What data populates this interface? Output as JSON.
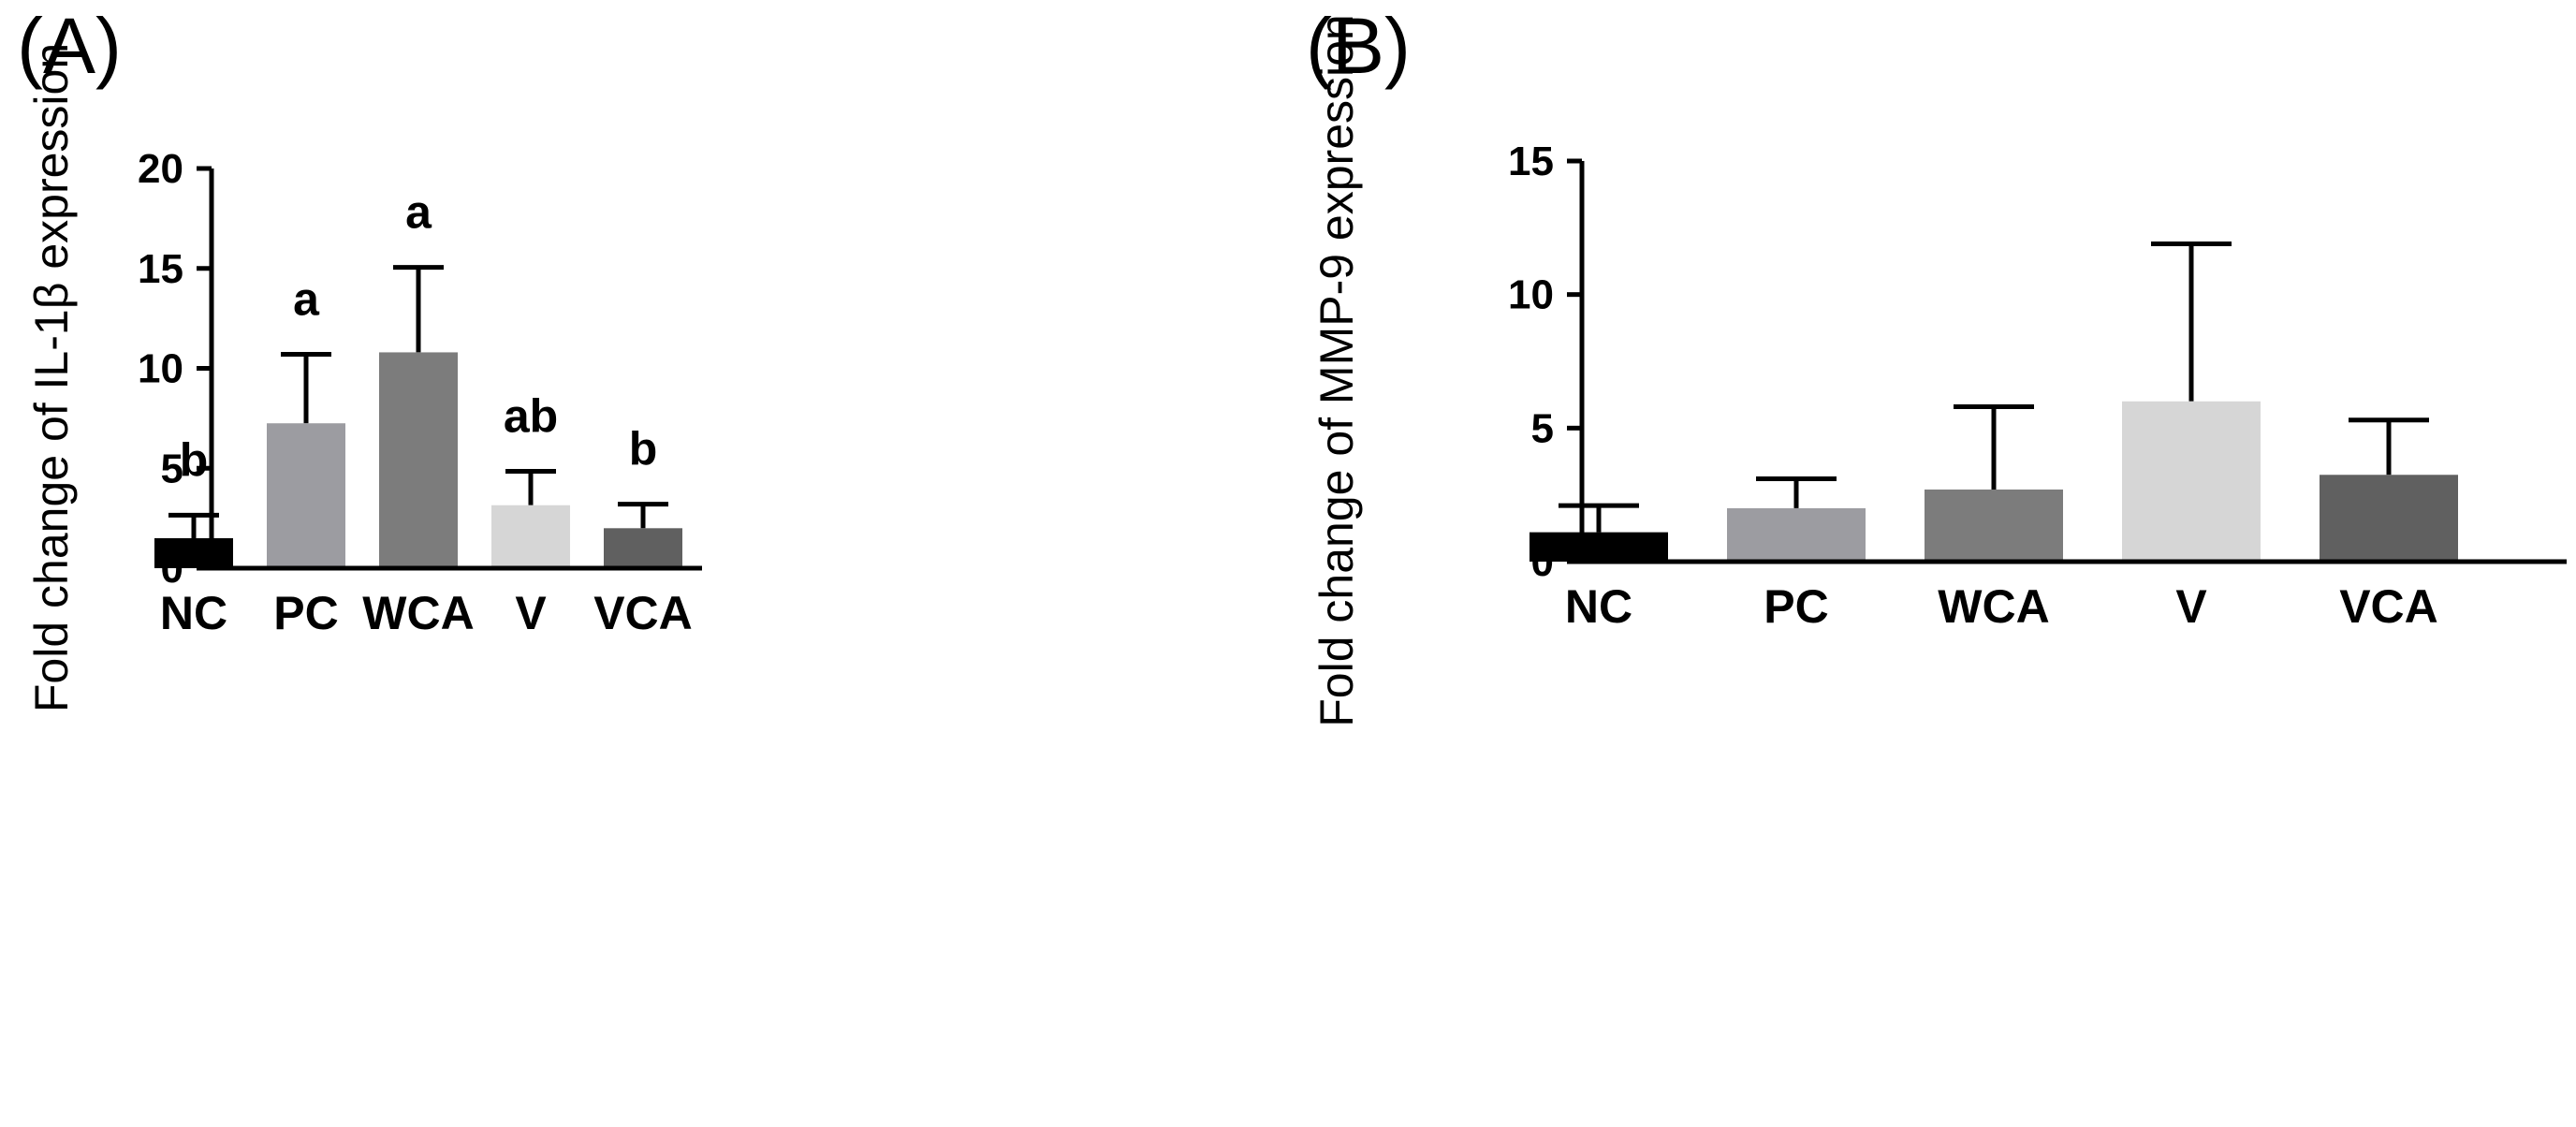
{
  "chart_data": [
    {
      "type": "bar",
      "panel_label": "(A)",
      "title": "",
      "xlabel": "",
      "ylabel": "Fold change of IL-1β expression",
      "categories": [
        "NC",
        "PC",
        "WCA",
        "V",
        "VCA"
      ],
      "values": [
        1.5,
        7.25,
        10.8,
        3.15,
        2.0
      ],
      "error_upper": [
        2.65,
        10.7,
        15.05,
        4.85,
        3.2
      ],
      "significance": [
        "b",
        "a",
        "a",
        "ab",
        "b"
      ],
      "bar_colors": [
        "#000000",
        "#9c9ca1",
        "#7c7c7c",
        "#d6d6d6",
        "#606060"
      ],
      "ylim": [
        0,
        20
      ],
      "yticks": [
        0,
        5,
        10,
        15,
        20
      ],
      "ytick_labels": [
        "0",
        "5",
        "10",
        "15",
        "20"
      ],
      "grid": false
    },
    {
      "type": "bar",
      "panel_label": "(B)",
      "title": "",
      "xlabel": "",
      "ylabel": "Fold change of MMP-9 expression",
      "categories": [
        "NC",
        "PC",
        "WCA",
        "V",
        "VCA"
      ],
      "values": [
        1.1,
        2.0,
        2.7,
        6.0,
        3.25
      ],
      "error_upper": [
        2.1,
        3.1,
        5.8,
        11.9,
        5.3
      ],
      "significance": [
        "",
        "",
        "",
        "",
        ""
      ],
      "bar_colors": [
        "#000000",
        "#9c9ca1",
        "#7c7c7c",
        "#d6d6d6",
        "#606060"
      ],
      "ylim": [
        0,
        15
      ],
      "yticks": [
        0,
        5,
        10,
        15
      ],
      "ytick_labels": [
        "0",
        "5",
        "10",
        "15"
      ],
      "grid": false
    }
  ]
}
